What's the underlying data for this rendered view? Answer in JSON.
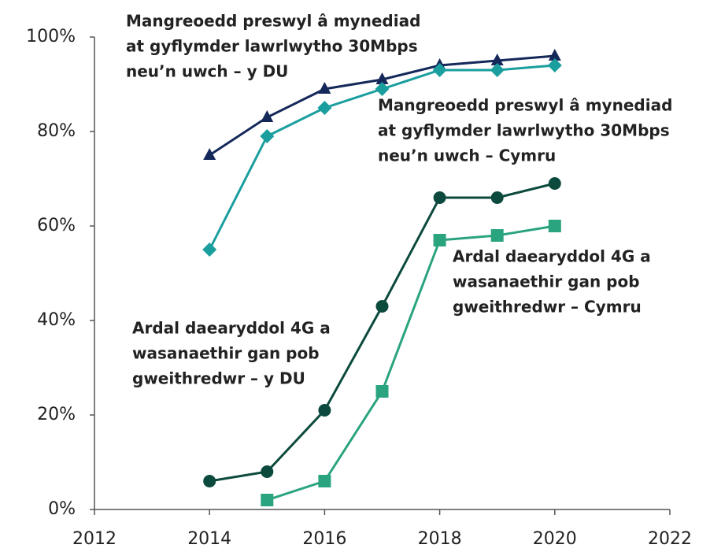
{
  "chart_data": {
    "type": "line",
    "x": [
      2014,
      2015,
      2016,
      2017,
      2018,
      2019,
      2020
    ],
    "xlim": [
      2012,
      2022
    ],
    "xticks": [
      2012,
      2014,
      2016,
      2018,
      2020,
      2022
    ],
    "ylim": [
      0,
      100
    ],
    "yticks": [
      {
        "value": 0,
        "label": "0%"
      },
      {
        "value": 20,
        "label": "20%"
      },
      {
        "value": 40,
        "label": "40%"
      },
      {
        "value": 60,
        "label": "60%"
      },
      {
        "value": 80,
        "label": "80%"
      },
      {
        "value": 100,
        "label": "100%"
      }
    ],
    "grid": false,
    "series": [
      {
        "name": [
          "Mangreoedd preswyl â mynediad",
          "at gyflymder lawrlwytho 30Mbps",
          "neu’n uwch – y DU"
        ],
        "color": "#14285a",
        "marker": "triangle",
        "values": [
          75,
          83,
          89,
          91,
          94,
          95,
          96
        ]
      },
      {
        "name": [
          "Mangreoedd preswyl â mynediad",
          "at gyflymder lawrlwytho 30Mbps",
          "neu’n uwch – Cymru"
        ],
        "color": "#1a9e9e",
        "marker": "diamond",
        "values": [
          55,
          79,
          85,
          89,
          93,
          93,
          94
        ]
      },
      {
        "name": [
          "Ardal daearyddol 4G a",
          "wasanaethir gan pob",
          "gweithredwr – y DU"
        ],
        "color": "#0c4a3e",
        "marker": "circle",
        "values": [
          6,
          8,
          21,
          43,
          66,
          66,
          69
        ]
      },
      {
        "name": [
          "Ardal daearyddol 4G a",
          "wasanaethir gan pob",
          "gweithredwr – Cymru"
        ],
        "color": "#2aa37f",
        "marker": "square",
        "values": [
          null,
          2,
          6,
          25,
          57,
          58,
          60
        ]
      }
    ]
  }
}
